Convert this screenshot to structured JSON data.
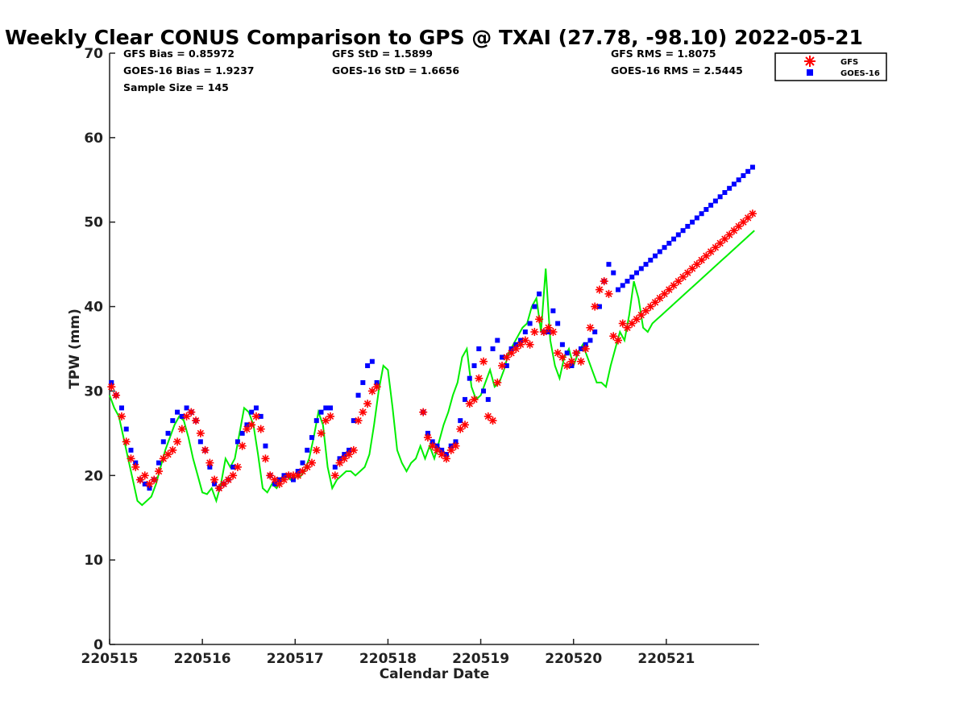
{
  "chart_data": {
    "type": "scatter",
    "title": "Weekly Clear CONUS Comparison to GPS @ TXAI (27.78, -98.10) 2022-05-21",
    "xlabel": "Calendar Date",
    "ylabel": "TPW (mm)",
    "xlim": [
      0,
      7
    ],
    "ylim": [
      0,
      70
    ],
    "x_ticks": [
      0,
      1,
      2,
      3,
      4,
      5,
      6
    ],
    "x_tick_labels": [
      "220515",
      "220516",
      "220517",
      "220518",
      "220519",
      "220520",
      "220521"
    ],
    "y_ticks": [
      0,
      10,
      20,
      30,
      40,
      50,
      60,
      70
    ],
    "y_tick_labels": [
      "0",
      "10",
      "20",
      "30",
      "40",
      "50",
      "60",
      "70"
    ],
    "stats": {
      "gfs_bias": "GFS Bias = 0.85972",
      "goes_bias": "GOES-16 Bias = 1.9237",
      "sample_size": "Sample Size = 145",
      "gfs_std": "GFS StD = 1.5899",
      "goes_std": "GOES-16 StD = 1.6656",
      "gfs_rms": "GFS RMS = 1.8075",
      "goes_rms": "GOES-16 RMS = 2.5445"
    },
    "legend": {
      "position": "top-right",
      "entries": [
        "GFS",
        "GOES-16"
      ]
    },
    "series": [
      {
        "name": "GPS",
        "style": "line",
        "color": "#00ee00",
        "x": [
          0.0,
          0.05,
          0.1,
          0.15,
          0.2,
          0.25,
          0.3,
          0.35,
          0.4,
          0.45,
          0.5,
          0.55,
          0.6,
          0.65,
          0.7,
          0.75,
          0.8,
          0.85,
          0.9,
          0.95,
          1.0,
          1.05,
          1.1,
          1.15,
          1.2,
          1.25,
          1.3,
          1.35,
          1.4,
          1.45,
          1.5,
          1.55,
          1.6,
          1.65,
          1.7,
          1.75,
          1.8,
          1.85,
          1.9,
          1.95,
          2.0,
          2.05,
          2.1,
          2.15,
          2.2,
          2.25,
          2.3,
          2.35,
          2.4,
          2.45,
          2.5,
          2.55,
          2.6,
          2.65,
          2.7,
          2.75,
          2.8,
          2.85,
          2.9,
          2.95,
          3.0,
          3.05,
          3.1,
          3.15,
          3.2,
          3.25,
          3.3,
          3.35,
          3.4,
          3.45,
          3.5,
          3.55,
          3.6,
          3.65,
          3.7,
          3.75,
          3.8,
          3.85,
          3.9,
          3.95,
          4.0,
          4.05,
          4.1,
          4.15,
          4.2,
          4.25,
          4.3,
          4.35,
          4.4,
          4.45,
          4.5,
          4.55,
          4.6,
          4.65,
          4.7,
          4.75,
          4.8,
          4.85,
          4.9,
          4.95,
          5.0,
          5.05,
          5.1,
          5.15,
          5.2,
          5.25,
          5.3,
          5.35,
          5.4,
          5.45,
          5.5,
          5.55,
          5.6,
          5.65,
          5.7,
          5.75,
          5.8,
          5.85,
          5.9,
          5.95,
          6.0,
          6.05,
          6.1,
          6.15,
          6.2,
          6.25,
          6.3,
          6.35,
          6.4,
          6.45,
          6.5,
          6.55,
          6.6,
          6.65,
          6.7,
          6.75,
          6.8,
          6.85,
          6.9,
          6.95,
          7.0
        ],
        "y": [
          29.5,
          28.0,
          27.0,
          24.5,
          22.0,
          19.5,
          17.0,
          16.5,
          17.0,
          17.5,
          19.0,
          21.0,
          23.0,
          24.5,
          26.0,
          27.0,
          26.5,
          24.5,
          22.0,
          20.0,
          18.0,
          17.8,
          18.5,
          17.0,
          19.0,
          22.0,
          21.0,
          22.0,
          25.0,
          28.0,
          27.5,
          26.0,
          22.5,
          18.5,
          18.0,
          19.0,
          18.5,
          19.5,
          20.0,
          19.5,
          20.0,
          19.8,
          20.5,
          22.0,
          24.5,
          27.5,
          26.0,
          21.0,
          18.5,
          19.5,
          20.0,
          20.5,
          20.5,
          20.0,
          20.5,
          21.0,
          22.5,
          26.0,
          30.0,
          33.0,
          32.5,
          28.0,
          23.0,
          21.5,
          20.5,
          21.5,
          22.0,
          23.5,
          22.0,
          23.5,
          22.0,
          24.0,
          26.0,
          27.5,
          29.5,
          31.0,
          34.0,
          35.0,
          30.5,
          29.0,
          29.5,
          31.0,
          32.5,
          30.5,
          31.0,
          32.5,
          34.5,
          35.5,
          36.5,
          37.5,
          38.0,
          40.0,
          41.0,
          37.0,
          44.5,
          36.0,
          33.0,
          31.5,
          34.0,
          35.0,
          33.0,
          34.5,
          35.5,
          34.0,
          32.5,
          31.0,
          31.0,
          30.5,
          33.0,
          35.0,
          37.0,
          36.0,
          39.0,
          43.0,
          41.0,
          37.5,
          37.0,
          38.0,
          38.5,
          39.0,
          39.5,
          40.0,
          40.5,
          41.0,
          41.5,
          42.0,
          42.5,
          43.0,
          43.5,
          44.0,
          44.5,
          45.0,
          45.5,
          46.0,
          46.5,
          47.0,
          47.5,
          48.0,
          48.5,
          49.0,
          49.5
        ]
      },
      {
        "name": "GFS",
        "style": "asterisk",
        "color": "#ff0000",
        "x": [
          0.02,
          0.07,
          0.13,
          0.18,
          0.23,
          0.28,
          0.33,
          0.38,
          0.43,
          0.48,
          0.53,
          0.58,
          0.63,
          0.68,
          0.73,
          0.78,
          0.83,
          0.88,
          0.93,
          0.98,
          1.03,
          1.08,
          1.13,
          1.18,
          1.23,
          1.28,
          1.33,
          1.38,
          1.43,
          1.48,
          1.53,
          1.58,
          1.63,
          1.68,
          1.73,
          1.78,
          1.83,
          1.88,
          1.93,
          1.98,
          2.03,
          2.08,
          2.13,
          2.18,
          2.23,
          2.28,
          2.33,
          2.38,
          2.43,
          2.48,
          2.53,
          2.58,
          2.63,
          2.68,
          2.73,
          2.78,
          2.83,
          2.88,
          3.38,
          3.43,
          3.48,
          3.53,
          3.58,
          3.63,
          3.68,
          3.73,
          3.78,
          3.83,
          3.88,
          3.93,
          3.98,
          4.03,
          4.08,
          4.13,
          4.18,
          4.23,
          4.28,
          4.33,
          4.38,
          4.43,
          4.48,
          4.53,
          4.58,
          4.63,
          4.68,
          4.73,
          4.78,
          4.83,
          4.88,
          4.93,
          4.98,
          5.03,
          5.08,
          5.13,
          5.18,
          5.23,
          5.28,
          5.33,
          5.38,
          5.43,
          5.48,
          5.53,
          5.58,
          5.63,
          5.68,
          5.73,
          5.78,
          5.83,
          5.88,
          5.93,
          5.98,
          6.03,
          6.08,
          6.13,
          6.18,
          6.23,
          6.28,
          6.33,
          6.38,
          6.43,
          6.48,
          6.53,
          6.58,
          6.63,
          6.68,
          6.73,
          6.78,
          6.83,
          6.88,
          6.93
        ],
        "y": [
          30.5,
          29.5,
          27.0,
          24.0,
          22.0,
          21.0,
          19.5,
          20.0,
          19.0,
          19.5,
          20.5,
          22.0,
          22.5,
          23.0,
          24.0,
          25.5,
          27.0,
          27.5,
          26.5,
          25.0,
          23.0,
          21.5,
          19.5,
          18.5,
          19.0,
          19.5,
          20.0,
          21.0,
          23.5,
          25.5,
          26.0,
          27.0,
          25.5,
          22.0,
          20.0,
          19.5,
          19.0,
          19.5,
          20.0,
          20.0,
          20.0,
          20.5,
          21.0,
          21.5,
          23.0,
          25.0,
          26.5,
          27.0,
          20.0,
          21.5,
          22.0,
          22.5,
          23.0,
          26.5,
          27.5,
          28.5,
          30.0,
          30.5,
          27.5,
          24.5,
          23.5,
          23.0,
          22.5,
          22.0,
          23.0,
          23.5,
          25.5,
          26.0,
          28.5,
          29.0,
          31.5,
          33.5,
          27.0,
          26.5,
          31.0,
          33.0,
          34.0,
          34.5,
          35.0,
          35.5,
          36.0,
          35.5,
          37.0,
          38.5,
          37.0,
          37.5,
          37.0,
          34.5,
          34.0,
          33.0,
          33.5,
          34.5,
          33.5,
          35.0,
          37.5,
          40.0,
          42.0,
          43.0,
          41.5,
          36.5,
          36.0,
          38.0,
          37.5,
          38.0,
          38.5,
          39.0,
          39.5,
          40.0,
          40.5,
          41.0,
          41.5,
          42.0,
          42.5,
          43.0,
          43.5,
          44.0,
          44.5,
          45.0,
          45.5,
          46.0,
          46.5,
          47.0,
          47.5,
          48.0,
          48.5,
          49.0,
          49.5,
          50.0,
          50.5,
          51.0
        ],
        "note": "values beyond x=6.9 unused"
      },
      {
        "name": "GOES-16",
        "style": "square",
        "color": "#0000ff",
        "x": [
          0.02,
          0.07,
          0.13,
          0.18,
          0.23,
          0.28,
          0.33,
          0.38,
          0.43,
          0.48,
          0.53,
          0.58,
          0.63,
          0.68,
          0.73,
          0.78,
          0.83,
          0.88,
          0.93,
          0.98,
          1.03,
          1.08,
          1.13,
          1.18,
          1.23,
          1.28,
          1.33,
          1.38,
          1.43,
          1.48,
          1.53,
          1.58,
          1.63,
          1.68,
          1.73,
          1.78,
          1.83,
          1.88,
          1.93,
          1.98,
          2.03,
          2.08,
          2.13,
          2.18,
          2.23,
          2.28,
          2.33,
          2.38,
          2.43,
          2.48,
          2.53,
          2.58,
          2.63,
          2.68,
          2.73,
          2.78,
          2.83,
          2.88,
          3.38,
          3.43,
          3.48,
          3.53,
          3.58,
          3.63,
          3.68,
          3.73,
          3.78,
          3.83,
          3.88,
          3.93,
          3.98,
          4.03,
          4.08,
          4.13,
          4.18,
          4.23,
          4.28,
          4.33,
          4.38,
          4.43,
          4.48,
          4.53,
          4.58,
          4.63,
          4.68,
          4.73,
          4.78,
          4.83,
          4.88,
          4.93,
          4.98,
          5.03,
          5.08,
          5.13,
          5.18,
          5.23,
          5.28,
          5.33,
          5.38,
          5.43,
          5.48,
          5.53,
          5.58,
          5.63,
          5.68,
          5.73,
          5.78,
          5.83,
          5.88,
          5.93,
          5.98,
          6.03,
          6.08,
          6.13,
          6.18,
          6.23,
          6.28,
          6.33,
          6.38,
          6.43,
          6.48,
          6.53,
          6.58,
          6.63,
          6.68,
          6.73,
          6.78,
          6.83,
          6.88,
          6.93
        ],
        "y": [
          31.0,
          29.5,
          28.0,
          25.5,
          23.0,
          21.5,
          19.5,
          19.0,
          18.5,
          19.5,
          21.5,
          24.0,
          25.0,
          26.5,
          27.5,
          27.0,
          28.0,
          27.5,
          26.5,
          24.0,
          23.0,
          21.0,
          19.0,
          18.5,
          19.0,
          19.5,
          21.0,
          24.0,
          25.0,
          26.0,
          27.5,
          28.0,
          27.0,
          23.5,
          20.0,
          19.0,
          19.5,
          20.0,
          20.0,
          19.5,
          20.5,
          21.5,
          23.0,
          24.5,
          26.5,
          27.5,
          28.0,
          28.0,
          21.0,
          22.0,
          22.5,
          23.0,
          26.5,
          29.5,
          31.0,
          33.0,
          33.5,
          31.0,
          27.5,
          25.0,
          24.0,
          23.5,
          23.0,
          22.5,
          23.5,
          24.0,
          26.5,
          29.0,
          31.5,
          33.0,
          35.0,
          30.0,
          29.0,
          35.0,
          36.0,
          34.0,
          33.0,
          35.0,
          35.5,
          36.0,
          37.0,
          38.0,
          40.0,
          41.5,
          37.0,
          37.0,
          39.5,
          38.0,
          35.5,
          34.5,
          33.0,
          34.5,
          35.0,
          35.5,
          36.0,
          37.0,
          40.0,
          43.0,
          45.0,
          44.0,
          42.0,
          42.5,
          43.0,
          43.5,
          44.0,
          44.5,
          45.0,
          45.5,
          46.0,
          46.5,
          47.0,
          47.5,
          48.0,
          48.5,
          49.0,
          49.5,
          50.0,
          50.5,
          51.0,
          51.5,
          52.0,
          52.5,
          53.0,
          53.5,
          54.0,
          54.5,
          55.0,
          55.5,
          56.0,
          56.5
        ],
        "note": "values beyond x=6.9 unused"
      }
    ]
  }
}
